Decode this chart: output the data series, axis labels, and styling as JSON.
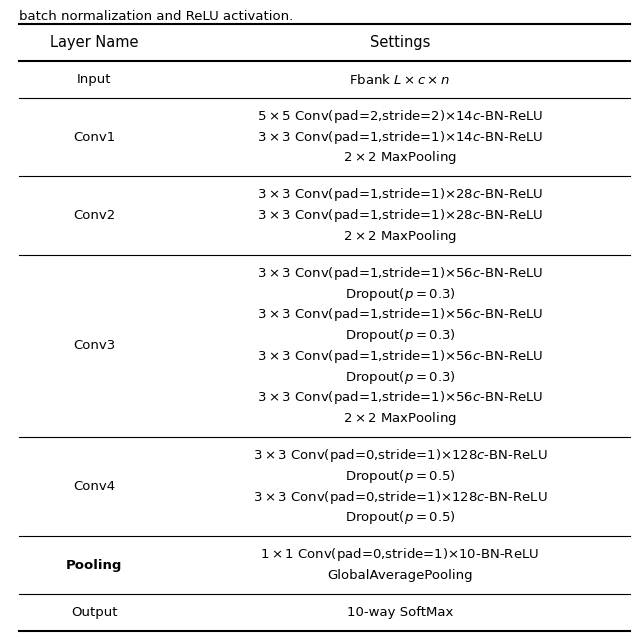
{
  "title_text": "batch normalization and ReLU activation.",
  "col1_header": "Layer Name",
  "col2_header": "Settings",
  "rows": [
    {
      "layer": "Input",
      "settings": [
        "Fbank $L \\times c \\times n$"
      ],
      "layer_bold": false
    },
    {
      "layer": "Conv1",
      "settings": [
        "$5 \\times 5$ Conv(pad=2,stride=2)$\\times$14$c$-BN-ReLU",
        "$3 \\times 3$ Conv(pad=1,stride=1)$\\times$14$c$-BN-ReLU",
        "$2 \\times 2$ MaxPooling"
      ],
      "layer_bold": false
    },
    {
      "layer": "Conv2",
      "settings": [
        "$3 \\times 3$ Conv(pad=1,stride=1)$\\times$28$c$-BN-ReLU",
        "$3 \\times 3$ Conv(pad=1,stride=1)$\\times$28$c$-BN-ReLU",
        "$2 \\times 2$ MaxPooling"
      ],
      "layer_bold": false
    },
    {
      "layer": "Conv3",
      "settings": [
        "$3 \\times 3$ Conv(pad=1,stride=1)$\\times$56$c$-BN-ReLU",
        "Dropout($p = 0.3$)",
        "$3 \\times 3$ Conv(pad=1,stride=1)$\\times$56$c$-BN-ReLU",
        "Dropout($p = 0.3$)",
        "$3 \\times 3$ Conv(pad=1,stride=1)$\\times$56$c$-BN-ReLU",
        "Dropout($p = 0.3$)",
        "$3 \\times 3$ Conv(pad=1,stride=1)$\\times$56$c$-BN-ReLU",
        "$2 \\times 2$ MaxPooling"
      ],
      "layer_bold": false
    },
    {
      "layer": "Conv4",
      "settings": [
        "$3 \\times 3$ Conv(pad=0,stride=1)$\\times$128$c$-BN-ReLU",
        "Dropout($p = 0.5$)",
        "$3 \\times 3$ Conv(pad=0,stride=1)$\\times$128$c$-BN-ReLU",
        "Dropout($p = 0.5$)"
      ],
      "layer_bold": false
    },
    {
      "layer": "Pooling",
      "settings": [
        "$1 \\times 1$ Conv(pad=0,stride=1)$\\times$10-BN-ReLU",
        "GlobalAveragePooling"
      ],
      "layer_bold": true
    },
    {
      "layer": "Output",
      "settings": [
        "10-way SoftMax"
      ],
      "layer_bold": false
    }
  ],
  "figsize": [
    6.4,
    6.36
  ],
  "dpi": 100,
  "background_color": "#ffffff",
  "line_color": "#000000",
  "text_color": "#000000",
  "font_size": 9.5,
  "header_font_size": 10.5,
  "title_font_size": 9.5
}
